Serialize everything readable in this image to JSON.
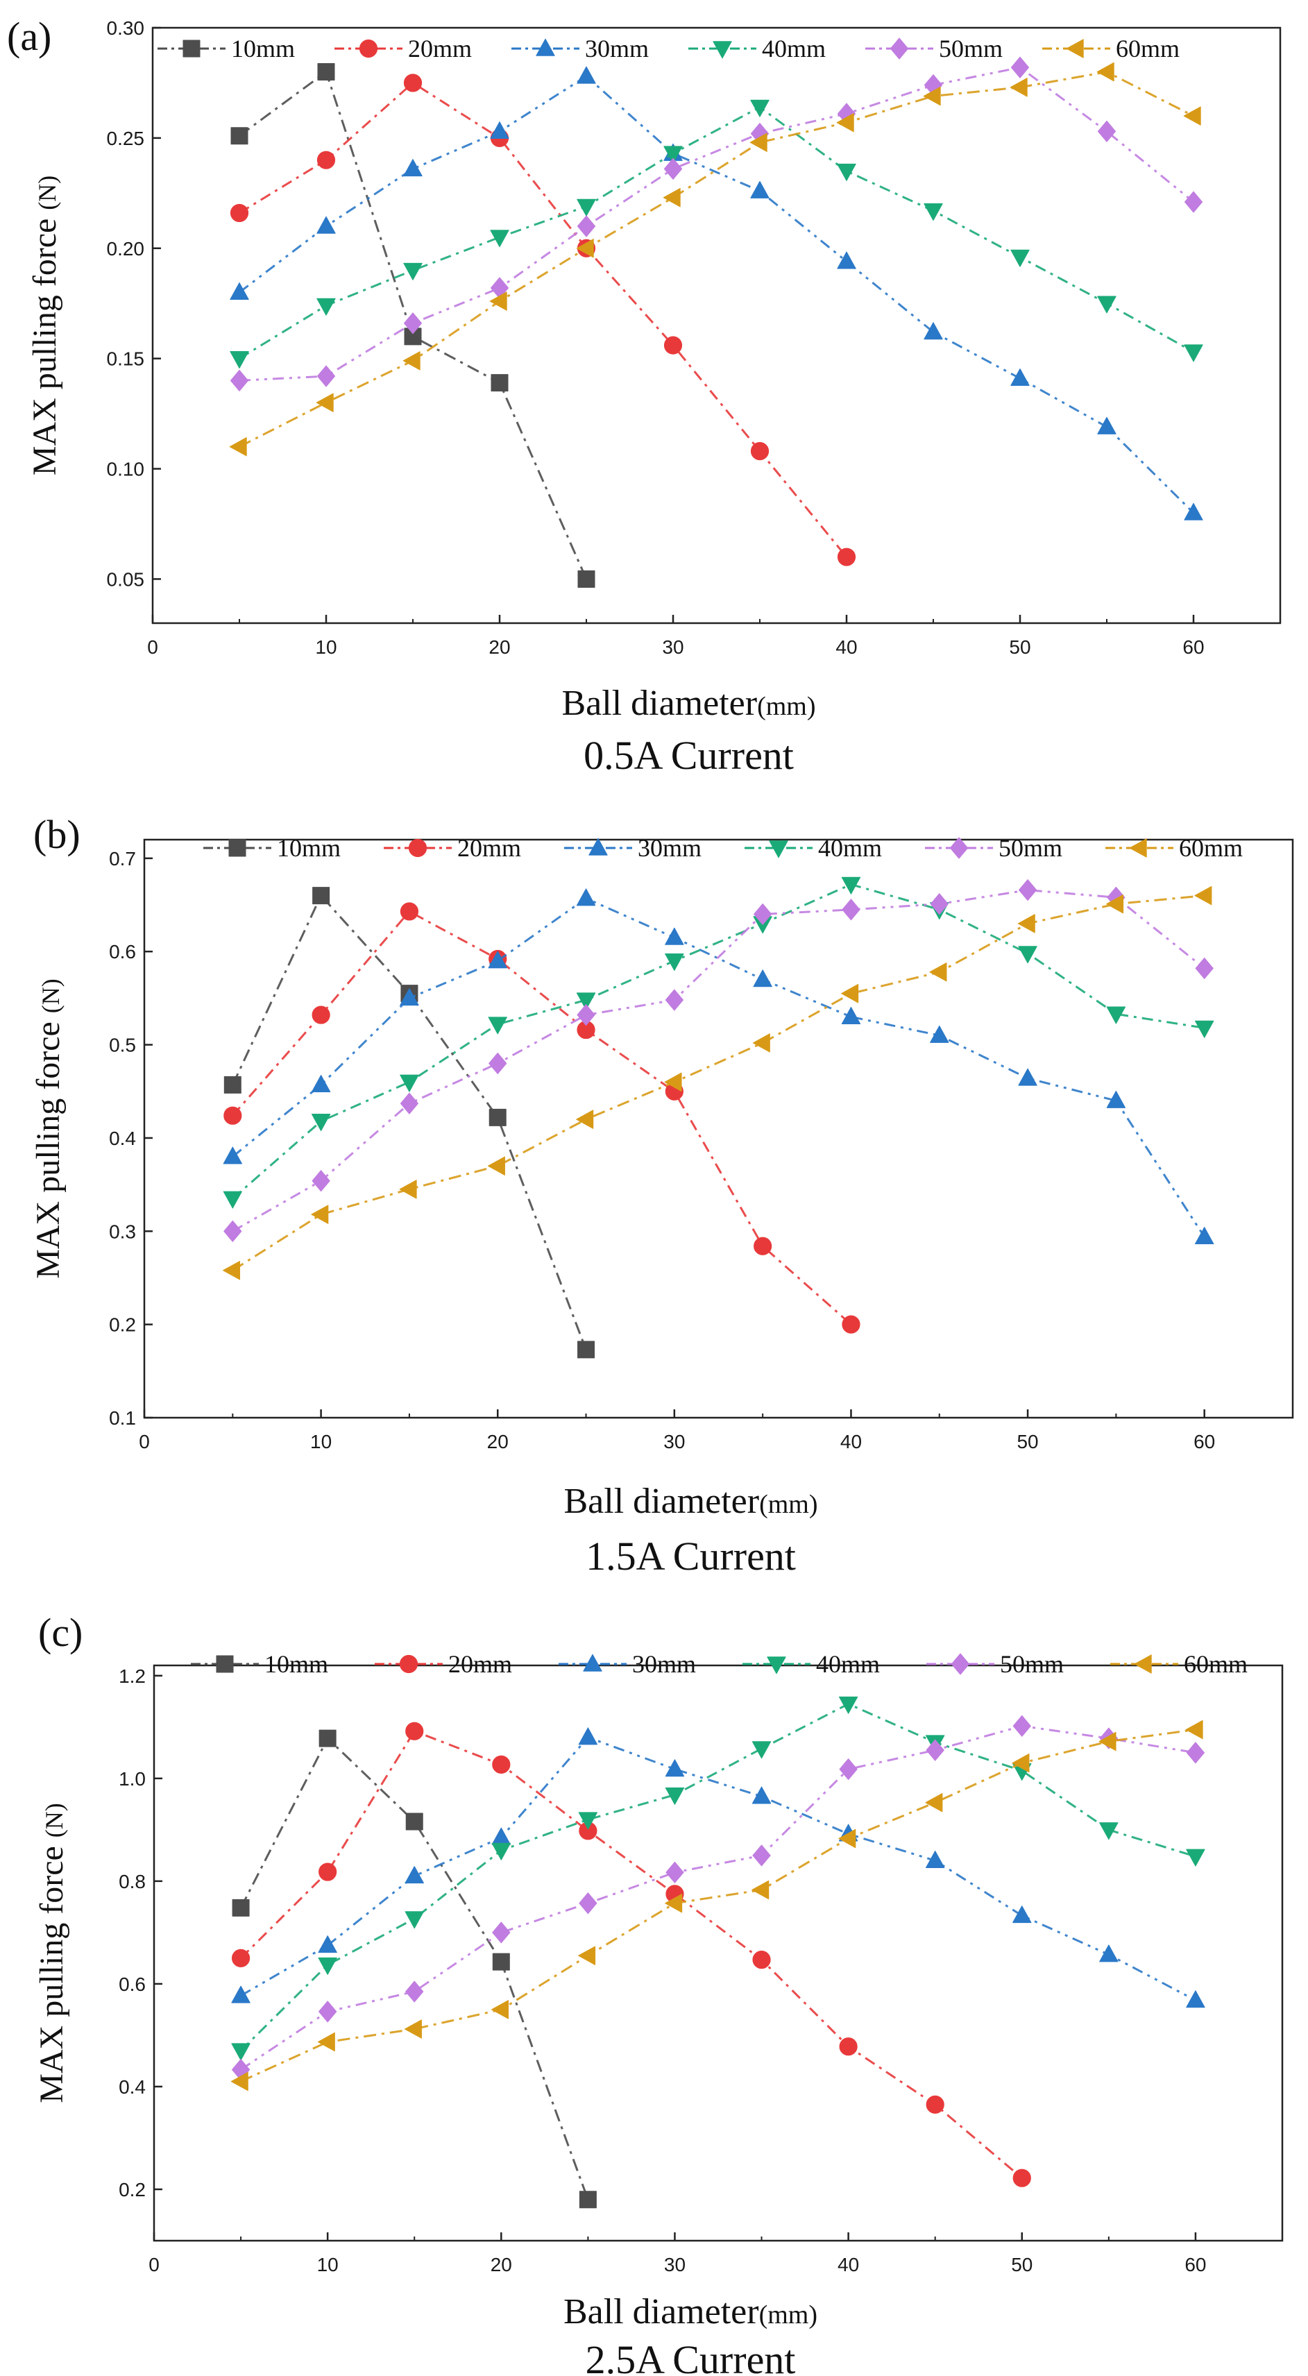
{
  "figure": {
    "x_label_main": "Ball diameter",
    "x_label_unit": "(mm)",
    "y_label_main": "MAX pulling force",
    "y_label_unit": "(N)"
  },
  "legend": [
    "10mm",
    "20mm",
    "30mm",
    "40mm",
    "50mm",
    "60mm"
  ],
  "colors": {
    "10mm": "#4d4d4d",
    "20mm": "#e8393a",
    "30mm": "#2a78c8",
    "40mm": "#1aaa78",
    "50mm": "#c07ce0",
    "60mm": "#d89a16"
  },
  "chart_data": [
    {
      "type": "line",
      "panel": "(a)",
      "title": "0.5A Current",
      "xlabel": "Ball diameter(mm)",
      "ylabel": "MAX pulling force (N)",
      "xlim": [
        0,
        65
      ],
      "ylim": [
        0.03,
        0.3
      ],
      "xticks": [
        0,
        10,
        20,
        30,
        40,
        50,
        60
      ],
      "yticks": [
        0.05,
        0.1,
        0.15,
        0.2,
        0.25,
        0.3
      ],
      "ytick_labels": [
        "0.05",
        "0.10",
        "0.15",
        "0.20",
        "0.25",
        "0.30"
      ],
      "series": [
        {
          "name": "10mm",
          "x": [
            5,
            10,
            15,
            20,
            25
          ],
          "values": [
            0.251,
            0.28,
            0.16,
            0.139,
            0.05
          ]
        },
        {
          "name": "20mm",
          "x": [
            5,
            10,
            15,
            20,
            25,
            30,
            35,
            40
          ],
          "values": [
            0.216,
            0.24,
            0.275,
            0.25,
            0.2,
            0.156,
            0.108,
            0.06
          ]
        },
        {
          "name": "30mm",
          "x": [
            5,
            10,
            15,
            20,
            25,
            30,
            35,
            40,
            45,
            50,
            55,
            60
          ],
          "values": [
            0.18,
            0.21,
            0.236,
            0.253,
            0.278,
            0.243,
            0.226,
            0.194,
            0.162,
            0.141,
            0.119,
            0.08
          ]
        },
        {
          "name": "40mm",
          "x": [
            5,
            10,
            15,
            20,
            25,
            30,
            35,
            40,
            45,
            50,
            55,
            60
          ],
          "values": [
            0.15,
            0.174,
            0.19,
            0.205,
            0.219,
            0.243,
            0.264,
            0.235,
            0.217,
            0.196,
            0.175,
            0.153
          ]
        },
        {
          "name": "50mm",
          "x": [
            5,
            10,
            15,
            20,
            25,
            30,
            35,
            40,
            45,
            50,
            55,
            60
          ],
          "values": [
            0.14,
            0.142,
            0.166,
            0.182,
            0.21,
            0.236,
            0.252,
            0.261,
            0.274,
            0.282,
            0.253,
            0.221
          ]
        },
        {
          "name": "60mm",
          "x": [
            5,
            10,
            15,
            20,
            25,
            30,
            35,
            40,
            45,
            50,
            55,
            60
          ],
          "values": [
            0.11,
            0.13,
            0.149,
            0.176,
            0.2,
            0.223,
            0.248,
            0.257,
            0.269,
            0.273,
            0.28,
            0.26
          ]
        }
      ]
    },
    {
      "type": "line",
      "panel": "(b)",
      "title": "1.5A Current",
      "xlabel": "Ball diameter(mm)",
      "ylabel": "MAX pulling force (N)",
      "xlim": [
        0,
        65
      ],
      "ylim": [
        0.1,
        0.72
      ],
      "xticks": [
        0,
        10,
        20,
        30,
        40,
        50,
        60
      ],
      "yticks": [
        0.1,
        0.2,
        0.3,
        0.4,
        0.5,
        0.6,
        0.7
      ],
      "ytick_labels": [
        "0.1",
        "0.2",
        "0.3",
        "0.4",
        "0.5",
        "0.6",
        "0.7"
      ],
      "series": [
        {
          "name": "10mm",
          "x": [
            5,
            10,
            15,
            20,
            25
          ],
          "values": [
            0.457,
            0.66,
            0.555,
            0.422,
            0.173
          ]
        },
        {
          "name": "20mm",
          "x": [
            5,
            10,
            15,
            20,
            25,
            30,
            35,
            40
          ],
          "values": [
            0.424,
            0.532,
            0.643,
            0.592,
            0.516,
            0.45,
            0.284,
            0.2
          ]
        },
        {
          "name": "30mm",
          "x": [
            5,
            10,
            15,
            20,
            25,
            30,
            35,
            40,
            45,
            50,
            55,
            60
          ],
          "values": [
            0.38,
            0.457,
            0.55,
            0.59,
            0.657,
            0.615,
            0.57,
            0.53,
            0.51,
            0.464,
            0.44,
            0.294
          ]
        },
        {
          "name": "40mm",
          "x": [
            5,
            10,
            15,
            20,
            25,
            30,
            35,
            40,
            45,
            50,
            55,
            60
          ],
          "values": [
            0.335,
            0.418,
            0.46,
            0.522,
            0.548,
            0.59,
            0.63,
            0.672,
            0.645,
            0.598,
            0.533,
            0.518
          ]
        },
        {
          "name": "50mm",
          "x": [
            5,
            10,
            15,
            20,
            25,
            30,
            35,
            40,
            45,
            50,
            55,
            60
          ],
          "values": [
            0.3,
            0.354,
            0.437,
            0.48,
            0.532,
            0.548,
            0.64,
            0.645,
            0.651,
            0.666,
            0.658,
            0.582
          ]
        },
        {
          "name": "60mm",
          "x": [
            5,
            10,
            15,
            20,
            25,
            30,
            35,
            40,
            45,
            50,
            55,
            60
          ],
          "values": [
            0.258,
            0.318,
            0.345,
            0.37,
            0.42,
            0.46,
            0.502,
            0.555,
            0.578,
            0.63,
            0.651,
            0.66
          ]
        }
      ]
    },
    {
      "type": "line",
      "panel": "(c)",
      "title": "2.5A Current",
      "xlabel": "Ball diameter(mm)",
      "ylabel": "MAX pulling force (N)",
      "xlim": [
        0,
        65
      ],
      "ylim": [
        0.1,
        1.22
      ],
      "xticks": [
        0,
        10,
        20,
        30,
        40,
        50,
        60
      ],
      "yticks": [
        0.2,
        0.4,
        0.6,
        0.8,
        1.0,
        1.2
      ],
      "ytick_labels": [
        "0.2",
        "0.4",
        "0.6",
        "0.8",
        "1.0",
        "1.2"
      ],
      "series": [
        {
          "name": "10mm",
          "x": [
            5,
            10,
            15,
            20,
            25
          ],
          "values": [
            0.748,
            1.078,
            0.916,
            0.643,
            0.18
          ]
        },
        {
          "name": "20mm",
          "x": [
            5,
            10,
            15,
            20,
            25,
            30,
            35,
            40,
            45,
            50
          ],
          "values": [
            0.65,
            0.818,
            1.092,
            1.027,
            0.898,
            0.775,
            0.647,
            0.478,
            0.365,
            0.222
          ]
        },
        {
          "name": "30mm",
          "x": [
            5,
            10,
            15,
            20,
            25,
            30,
            35,
            40,
            45,
            50,
            55,
            60
          ],
          "values": [
            0.577,
            0.675,
            0.81,
            0.885,
            1.08,
            1.018,
            0.965,
            0.892,
            0.84,
            0.733,
            0.657,
            0.568
          ]
        },
        {
          "name": "40mm",
          "x": [
            5,
            10,
            15,
            20,
            25,
            30,
            35,
            40,
            45,
            50,
            55,
            60
          ],
          "values": [
            0.47,
            0.637,
            0.727,
            0.86,
            0.92,
            0.968,
            1.058,
            1.145,
            1.07,
            1.015,
            0.9,
            0.848
          ]
        },
        {
          "name": "50mm",
          "x": [
            5,
            10,
            15,
            20,
            25,
            30,
            35,
            40,
            45,
            50,
            55,
            60
          ],
          "values": [
            0.433,
            0.546,
            0.585,
            0.7,
            0.757,
            0.817,
            0.85,
            1.018,
            1.055,
            1.102,
            1.078,
            1.05
          ]
        },
        {
          "name": "60mm",
          "x": [
            5,
            10,
            15,
            20,
            25,
            30,
            35,
            40,
            45,
            50,
            55,
            60
          ],
          "values": [
            0.41,
            0.487,
            0.512,
            0.55,
            0.655,
            0.757,
            0.783,
            0.883,
            0.953,
            1.03,
            1.072,
            1.095
          ]
        }
      ]
    }
  ]
}
